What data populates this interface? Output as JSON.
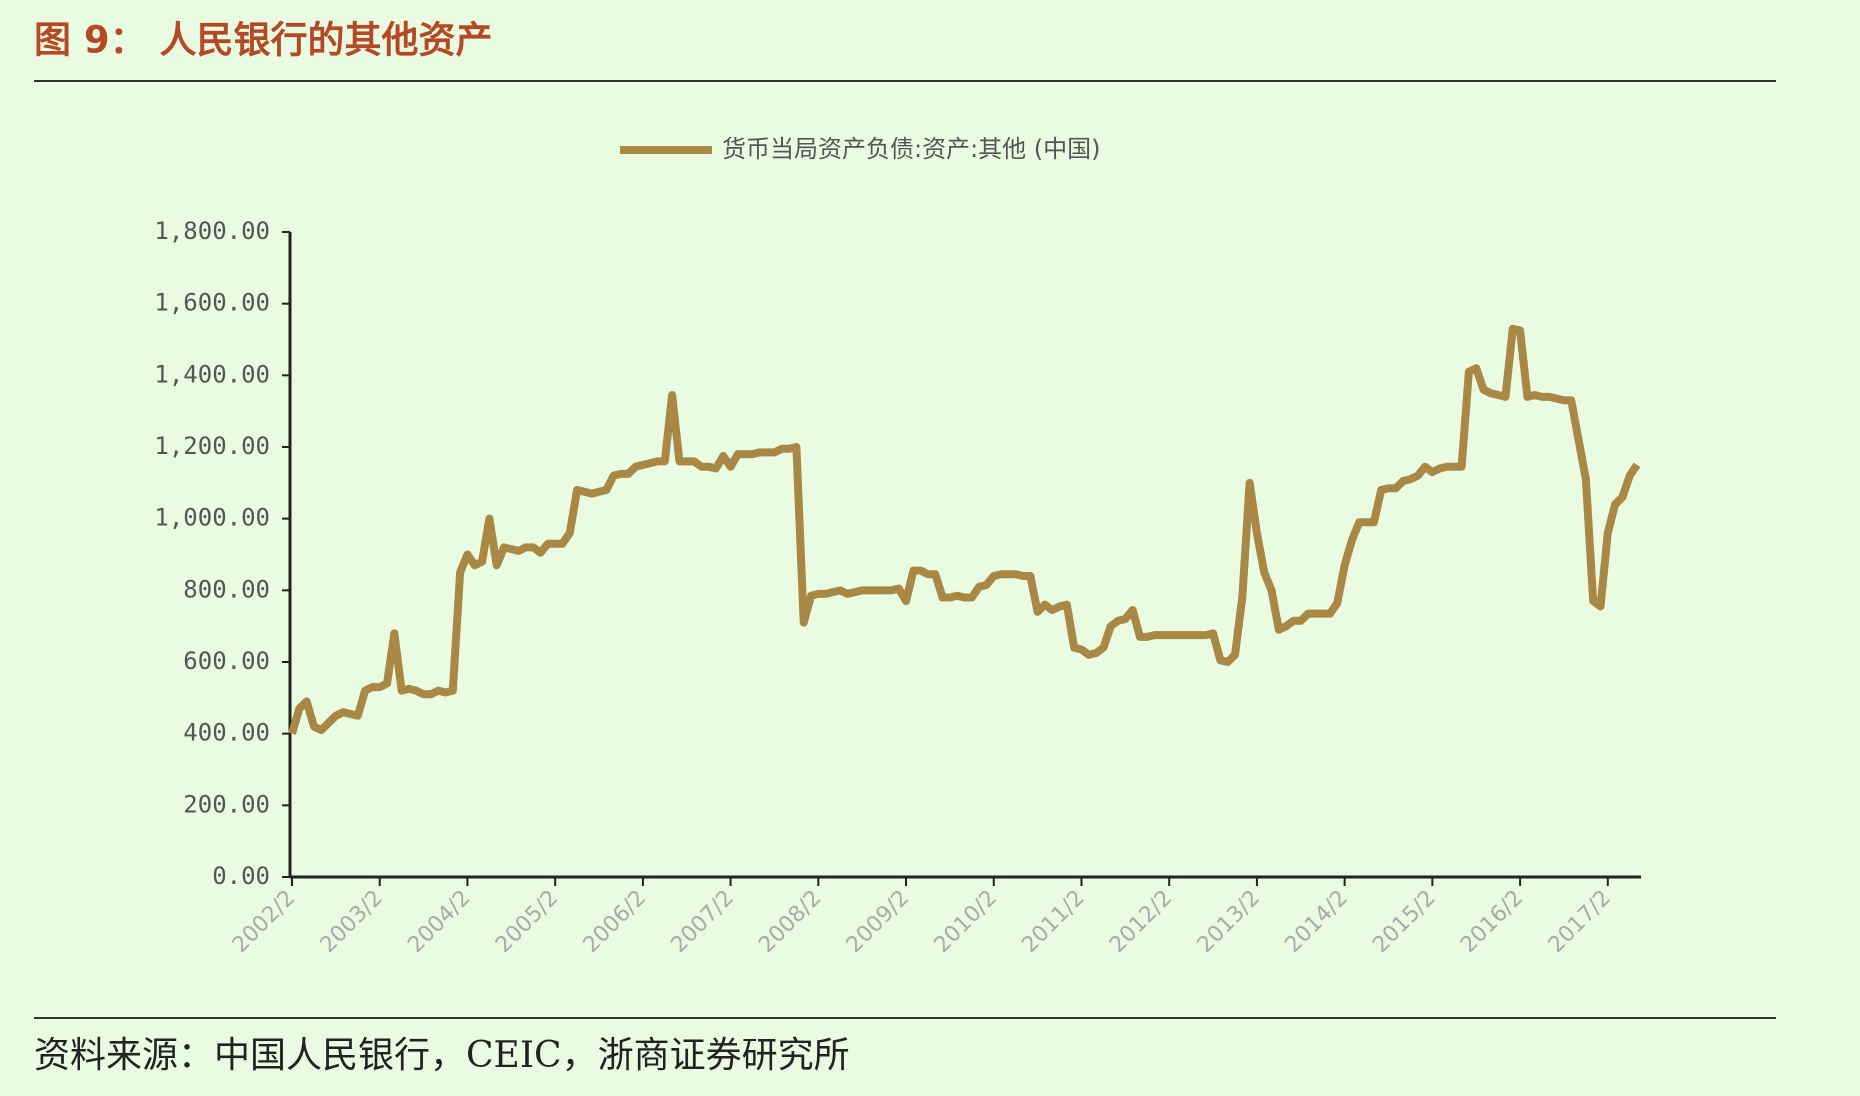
{
  "chart_data": {
    "type": "line",
    "title": "图 9：  人民银行的其他资产",
    "source": "资料来源：中国人民银行，CEIC，浙商证券研究所",
    "categories": [
      "2002/2",
      null,
      null,
      null,
      null,
      null,
      null,
      null,
      null,
      null,
      null,
      null,
      "2003/2",
      null,
      null,
      null,
      null,
      null,
      null,
      null,
      null,
      null,
      null,
      null,
      "2004/2",
      null,
      null,
      null,
      null,
      null,
      null,
      null,
      null,
      null,
      null,
      null,
      "2005/2",
      null,
      null,
      null,
      null,
      null,
      null,
      null,
      null,
      null,
      null,
      null,
      "2006/2",
      null,
      null,
      null,
      null,
      null,
      null,
      null,
      null,
      null,
      null,
      null,
      "2007/2",
      null,
      null,
      null,
      null,
      null,
      null,
      null,
      null,
      null,
      null,
      null,
      "2008/2",
      null,
      null,
      null,
      null,
      null,
      null,
      null,
      null,
      null,
      null,
      null,
      "2009/2",
      null,
      null,
      null,
      null,
      null,
      null,
      null,
      null,
      null,
      null,
      null,
      "2010/2",
      null,
      null,
      null,
      null,
      null,
      null,
      null,
      null,
      null,
      null,
      null,
      "2011/2",
      null,
      null,
      null,
      null,
      null,
      null,
      null,
      null,
      null,
      null,
      null,
      "2012/2",
      null,
      null,
      null,
      null,
      null,
      null,
      null,
      null,
      null,
      null,
      null,
      "2013/2",
      null,
      null,
      null,
      null,
      null,
      null,
      null,
      null,
      null,
      null,
      null,
      "2014/2",
      null,
      null,
      null,
      null,
      null,
      null,
      null,
      null,
      null,
      null,
      null,
      "2015/2",
      null,
      null,
      null,
      null,
      null,
      null,
      null,
      null,
      null,
      null,
      null,
      "2016/2",
      null,
      null,
      null,
      null,
      null,
      null,
      null,
      null,
      null,
      null,
      null,
      "2017/2",
      null,
      null,
      null,
      null
    ],
    "series": [
      {
        "name": "货币当局资产负债:资产:其他 (中国)",
        "color": "#a98845",
        "values": [
          400,
          470,
          490,
          420,
          410,
          430,
          450,
          460,
          455,
          450,
          520,
          530,
          530,
          540,
          680,
          520,
          525,
          520,
          510,
          510,
          520,
          515,
          520,
          850,
          900,
          870,
          880,
          1000,
          870,
          920,
          915,
          910,
          920,
          920,
          905,
          930,
          930,
          930,
          960,
          1080,
          1075,
          1070,
          1075,
          1080,
          1120,
          1125,
          1125,
          1145,
          1150,
          1155,
          1160,
          1160,
          1345,
          1160,
          1160,
          1160,
          1145,
          1145,
          1140,
          1175,
          1145,
          1180,
          1180,
          1180,
          1185,
          1185,
          1185,
          1195,
          1195,
          1200,
          710,
          785,
          790,
          790,
          795,
          800,
          790,
          795,
          800,
          800,
          800,
          800,
          800,
          805,
          770,
          855,
          855,
          845,
          845,
          780,
          780,
          785,
          780,
          780,
          810,
          815,
          840,
          845,
          845,
          845,
          840,
          840,
          740,
          760,
          745,
          755,
          760,
          640,
          635,
          620,
          625,
          640,
          700,
          715,
          720,
          745,
          670,
          670,
          675,
          675,
          675,
          675,
          675,
          675,
          675,
          675,
          680,
          605,
          600,
          620,
          780,
          1100,
          960,
          850,
          800,
          690,
          700,
          715,
          715,
          735,
          735,
          735,
          735,
          765,
          870,
          940,
          990,
          990,
          990,
          1080,
          1085,
          1085,
          1105,
          1110,
          1120,
          1145,
          1130,
          1140,
          1145,
          1145,
          1145,
          1410,
          1420,
          1360,
          1350,
          1345,
          1340,
          1530,
          1525,
          1340,
          1345,
          1340,
          1340,
          1335,
          1330,
          1330,
          1220,
          1110,
          770,
          755,
          960,
          1040,
          1060,
          1120,
          1150
        ]
      }
    ],
    "ylim": [
      0,
      1800
    ],
    "yticks": [
      {
        "value": 0,
        "label": "0.00"
      },
      {
        "value": 200,
        "label": "200.00"
      },
      {
        "value": 400,
        "label": "400.00"
      },
      {
        "value": 600,
        "label": "600.00"
      },
      {
        "value": 800,
        "label": "800.00"
      },
      {
        "value": 1000,
        "label": "1,000.00"
      },
      {
        "value": 1200,
        "label": "1,200.00"
      },
      {
        "value": 1400,
        "label": "1,400.00"
      },
      {
        "value": 1600,
        "label": "1,600.00"
      },
      {
        "value": 1800,
        "label": "1,800.00"
      }
    ],
    "grid": false,
    "legend": "top"
  }
}
